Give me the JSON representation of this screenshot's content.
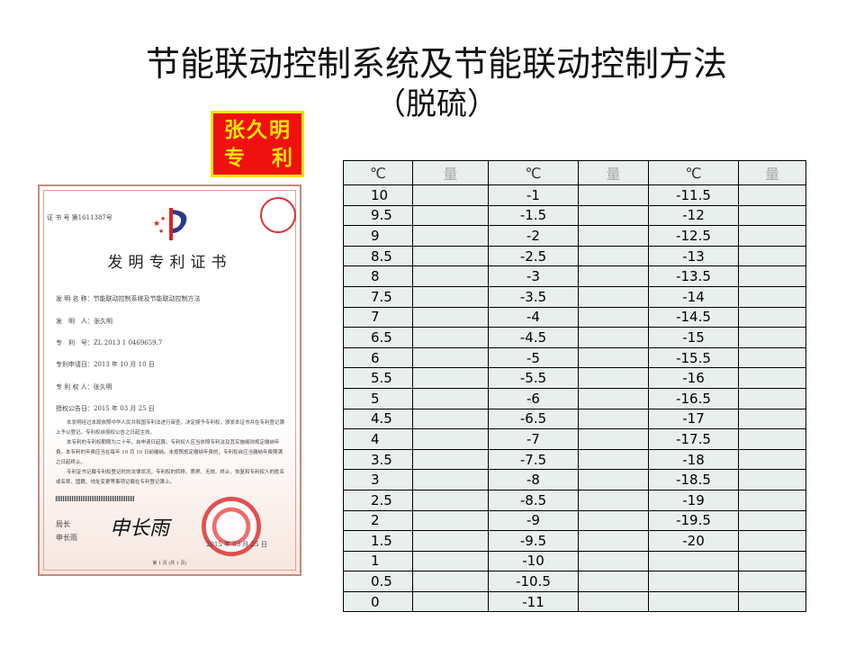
{
  "title": {
    "line1": "节能联动控制系统及节能联动控制方法",
    "line2": "（脱硫）"
  },
  "badge": {
    "line1": "张久明",
    "line2": [
      "专",
      "利"
    ],
    "bg_color": "#f01010",
    "text_color": "#ffe600"
  },
  "certificate": {
    "number": "证 书 号 第1611387号",
    "heading": "发明专利证书",
    "fields": [
      "发 明 名 称：节能联动控制系统及节能联动控制方法",
      "发　明　人：张久明",
      "专　利　号：ZL 2013 1 0469659.7",
      "专利申请日：2013 年 10 月 10 日",
      "专 利 权 人：张久明",
      "授权公告日：2015 年 03 月 25 日"
    ],
    "paragraphs": [
      "本发明经过本局依照中华人民共和国专利法进行审查，决定授予专利权，颁发本证书并在专利登记簿上予以登记。专利权自授权公告之日起生效。",
      "本专利的专利权期限为二十年，自申请日起算。专利权人应当依照专利法及其实施细则规定缴纳年费。本专利的年费应当在每年 10 月 10 日前缴纳。未按照规定缴纳年费的，专利权自应当缴纳年费期满之日起终止。",
      "专利证书记载专利权登记时的法律状况。专利权的转移、质押、无效、终止、恢复和专利权人的姓名或名称、国籍、地址变更等事项记载在专利登记簿上。"
    ],
    "director_title": "局长",
    "director_name": "申长雨",
    "signature": "申长雨",
    "seal_date": "2015 年 03 月 25 日",
    "page": "第 1 页 (共 1 页)"
  },
  "table": {
    "headers": [
      "℃",
      "量",
      "℃",
      "量",
      "℃",
      "量"
    ],
    "rows": [
      [
        "10",
        "",
        "-1",
        "",
        "-11.5",
        ""
      ],
      [
        "9.5",
        "",
        "-1.5",
        "",
        "-12",
        ""
      ],
      [
        "9",
        "",
        "-2",
        "",
        "-12.5",
        ""
      ],
      [
        "8.5",
        "",
        "-2.5",
        "",
        "-13",
        ""
      ],
      [
        "8",
        "",
        "-3",
        "",
        "-13.5",
        ""
      ],
      [
        "7.5",
        "",
        "-3.5",
        "",
        "-14",
        ""
      ],
      [
        "7",
        "",
        "-4",
        "",
        "-14.5",
        ""
      ],
      [
        "6.5",
        "",
        "-4.5",
        "",
        "-15",
        ""
      ],
      [
        "6",
        "",
        "-5",
        "",
        "-15.5",
        ""
      ],
      [
        "5.5",
        "",
        "-5.5",
        "",
        "-16",
        ""
      ],
      [
        "5",
        "",
        "-6",
        "",
        "-16.5",
        ""
      ],
      [
        "4.5",
        "",
        "-6.5",
        "",
        "-17",
        ""
      ],
      [
        "4",
        "",
        "-7",
        "",
        "-17.5",
        ""
      ],
      [
        "3.5",
        "",
        "-7.5",
        "",
        "-18",
        ""
      ],
      [
        "3",
        "",
        "-8",
        "",
        "-18.5",
        ""
      ],
      [
        "2.5",
        "",
        "-8.5",
        "",
        "-19",
        ""
      ],
      [
        "2",
        "",
        "-9",
        "",
        "-19.5",
        ""
      ],
      [
        "1.5",
        "",
        "-9.5",
        "",
        "-20",
        ""
      ],
      [
        "1",
        "",
        "-10",
        "",
        "",
        ""
      ],
      [
        "0.5",
        "",
        "-10.5",
        "",
        "",
        ""
      ],
      [
        "0",
        "",
        "-11",
        "",
        "",
        ""
      ]
    ]
  }
}
